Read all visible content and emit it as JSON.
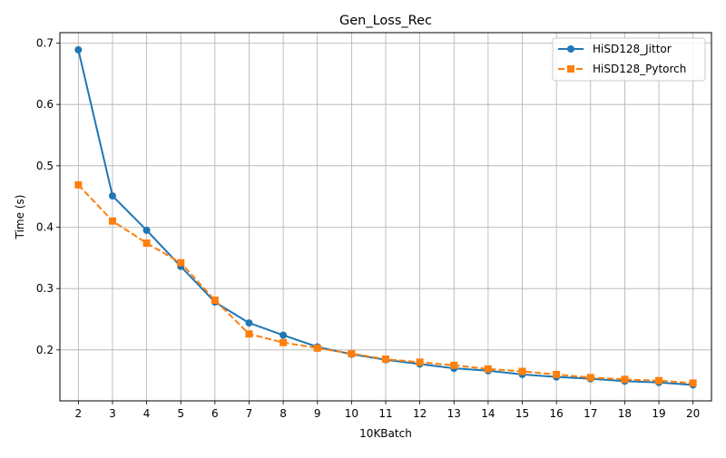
{
  "chart_data": {
    "type": "line",
    "title": "Gen_Loss_Rec",
    "xlabel": "10KBatch",
    "ylabel": "Time (s)",
    "x": [
      2,
      3,
      4,
      5,
      6,
      7,
      8,
      9,
      10,
      11,
      12,
      13,
      14,
      15,
      16,
      17,
      18,
      19,
      20
    ],
    "xlim": [
      1.46,
      20.54
    ],
    "ylim": [
      0.117,
      0.717
    ],
    "yticks": [
      0.2,
      0.3,
      0.4,
      0.5,
      0.6,
      0.7
    ],
    "grid": true,
    "legend_position": "top-right",
    "series": [
      {
        "name": "HiSD128_Jittor",
        "color": "#1f77b4",
        "marker": "circle",
        "linestyle": "solid",
        "values": [
          0.689,
          0.451,
          0.395,
          0.336,
          0.278,
          0.244,
          0.224,
          0.205,
          0.193,
          0.184,
          0.177,
          0.17,
          0.166,
          0.16,
          0.156,
          0.153,
          0.149,
          0.147,
          0.143
        ]
      },
      {
        "name": "HiSD128_Pytorch",
        "color": "#ff7f0e",
        "marker": "square",
        "linestyle": "dashed",
        "values": [
          0.469,
          0.41,
          0.374,
          0.342,
          0.281,
          0.226,
          0.212,
          0.203,
          0.194,
          0.185,
          0.18,
          0.175,
          0.169,
          0.165,
          0.16,
          0.155,
          0.152,
          0.15,
          0.146
        ]
      }
    ]
  }
}
